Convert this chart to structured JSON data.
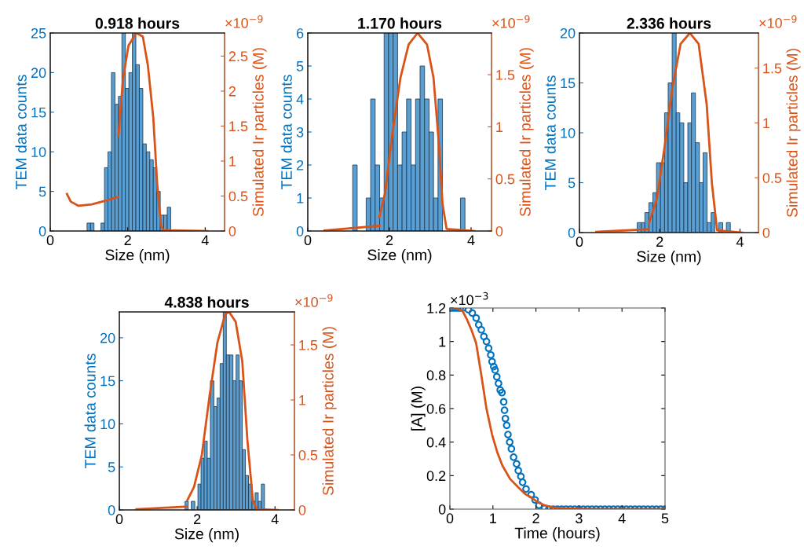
{
  "chart_data": [
    {
      "type": "histogram",
      "title": "0.918 hours",
      "xlabel": "Size (nm)",
      "ylabel": "TEM data counts",
      "y2label": "Simulated Ir particles (M)",
      "color": "#5a9fd4",
      "bins": [
        0.95,
        1.04,
        1.13,
        1.22,
        1.31,
        1.4,
        1.49,
        1.58,
        1.67,
        1.76,
        1.85,
        1.94,
        2.03,
        2.12,
        2.21,
        2.3,
        2.39,
        2.48,
        2.57,
        2.66,
        2.75,
        2.84,
        2.93,
        3.02,
        3.11
      ],
      "values": [
        1,
        1,
        0,
        0,
        1,
        8,
        10,
        20,
        16,
        17,
        25,
        18,
        20,
        25,
        21,
        18,
        11,
        10,
        9,
        8,
        5,
        2,
        2,
        3
      ],
      "xlim": [
        0,
        4.5
      ],
      "xticks": [
        0,
        2,
        4
      ],
      "ylim": [
        0,
        25
      ],
      "yticks": [
        0,
        5,
        10,
        15,
        20,
        25
      ],
      "y2lim": [
        0,
        2.83
      ],
      "y2ticks": [
        0,
        0.5,
        1,
        1.5,
        2,
        2.5
      ],
      "series": [
        {
          "type": "line",
          "axis": "y2",
          "color": "#d95319",
          "x": [
            0.43,
            0.53,
            0.73,
            1.07,
            1.41,
            1.76
          ],
          "values": [
            0.53,
            0.42,
            0.36,
            0.38,
            0.43,
            0.49
          ]
        },
        {
          "type": "line",
          "axis": "y2",
          "color": "#d95319",
          "x": [
            1.76,
            1.88,
            2.02,
            2.22,
            2.39,
            2.52,
            2.66,
            2.76,
            2.86,
            2.93,
            4.05
          ],
          "values": [
            1.36,
            2.18,
            2.65,
            2.83,
            2.78,
            2.37,
            1.62,
            0.68,
            0.08,
            0.01,
            0
          ]
        }
      ],
      "annotations": [
        "×10$^{−9}$"
      ]
    },
    {
      "type": "histogram",
      "title": "1.170 hours",
      "xlabel": "Size (nm)",
      "ylabel": "TEM data counts",
      "y2label": "Simulated Ir particles (M)",
      "color": "#5a9fd4",
      "bins": [
        1.1,
        1.21,
        1.32,
        1.43,
        1.54,
        1.65,
        1.76,
        1.87,
        1.98,
        2.09,
        2.2,
        2.31,
        2.42,
        2.53,
        2.64,
        2.75,
        2.86,
        2.97,
        3.08,
        3.19,
        3.3,
        3.41,
        3.52,
        3.63,
        3.74,
        3.85
      ],
      "values": [
        2,
        0,
        0,
        1,
        4,
        2,
        1,
        6,
        6,
        6,
        2,
        3,
        4,
        2,
        4,
        5,
        4,
        3,
        1,
        4,
        0,
        0,
        0,
        0,
        1
      ],
      "xlim": [
        0,
        4.5
      ],
      "xticks": [
        0,
        2,
        4
      ],
      "ylim": [
        0,
        6
      ],
      "yticks": [
        0,
        1,
        2,
        3,
        4,
        5,
        6
      ],
      "y2lim": [
        0,
        1.9
      ],
      "y2ticks": [
        0,
        0.5,
        1,
        1.5
      ],
      "series": [
        {
          "type": "line",
          "axis": "y2",
          "color": "#d95319",
          "x": [
            0.41,
            1.76
          ],
          "values": [
            0.005,
            0.05
          ]
        },
        {
          "type": "line",
          "axis": "y2",
          "color": "#d95319",
          "x": [
            1.75,
            1.89,
            2.08,
            2.27,
            2.47,
            2.69,
            2.92,
            3.08,
            3.21,
            3.3,
            3.4,
            4.08
          ],
          "values": [
            0.13,
            0.36,
            0.96,
            1.47,
            1.79,
            1.9,
            1.79,
            1.47,
            0.84,
            0.26,
            0.02,
            0
          ]
        }
      ],
      "annotations": [
        "×10$^{−9}$"
      ]
    },
    {
      "type": "histogram",
      "title": "2.336 hours",
      "xlabel": "Size (nm)",
      "ylabel": "TEM data counts",
      "y2label": "Simulated Ir particles (M)",
      "color": "#5a9fd4",
      "bins": [
        1.44,
        1.54,
        1.63,
        1.73,
        1.83,
        1.92,
        2.02,
        2.12,
        2.21,
        2.31,
        2.41,
        2.5,
        2.6,
        2.7,
        2.79,
        2.89,
        2.99,
        3.08,
        3.18,
        3.28,
        3.37,
        3.47,
        3.57,
        3.66,
        3.76
      ],
      "values": [
        1,
        1,
        2,
        3,
        4,
        7,
        7,
        12,
        15,
        20,
        12,
        11,
        5,
        11,
        14,
        9,
        5,
        8,
        1,
        2,
        0,
        1,
        0,
        1
      ],
      "xlim": [
        0,
        4.46
      ],
      "xticks": [
        0,
        2,
        4
      ],
      "ylim": [
        0,
        20
      ],
      "yticks": [
        0,
        5,
        10,
        15,
        20
      ],
      "y2lim": [
        0,
        1.82
      ],
      "y2ticks": [
        0,
        0.5,
        1,
        1.5
      ],
      "series": [
        {
          "type": "line",
          "axis": "y2",
          "color": "#d95319",
          "x": [
            0.42,
            1.73
          ],
          "values": [
            0.007,
            0.03
          ]
        },
        {
          "type": "line",
          "axis": "y2",
          "color": "#d95319",
          "x": [
            1.73,
            1.93,
            2.12,
            2.32,
            2.52,
            2.75,
            2.97,
            3.17,
            3.3,
            3.43,
            4.05
          ],
          "values": [
            0.08,
            0.31,
            0.78,
            1.33,
            1.72,
            1.82,
            1.72,
            1.17,
            0.45,
            0.02,
            0
          ]
        }
      ],
      "annotations": [
        "×10$^{−9}$"
      ]
    },
    {
      "type": "histogram",
      "title": "4.838 hours",
      "xlabel": "Size (nm)",
      "ylabel": "TEM data counts",
      "y2label": "Simulated Ir particles (M)",
      "color": "#5a9fd4",
      "bins": [
        1.69,
        1.77,
        1.85,
        1.94,
        2.02,
        2.1,
        2.18,
        2.26,
        2.34,
        2.43,
        2.51,
        2.59,
        2.67,
        2.75,
        2.83,
        2.92,
        3.0,
        3.08,
        3.16,
        3.24,
        3.32,
        3.41,
        3.49,
        3.57,
        3.65,
        3.73
      ],
      "values": [
        1,
        0,
        1,
        0,
        3,
        6,
        8,
        6,
        15,
        12,
        13,
        17,
        23,
        18,
        18,
        15,
        18,
        15,
        7,
        4,
        3,
        1,
        2,
        1,
        3
      ],
      "xlim": [
        0,
        4.5
      ],
      "xticks": [
        0,
        2,
        4
      ],
      "ylim": [
        0,
        23
      ],
      "yticks": [
        0,
        5,
        10,
        15,
        20
      ],
      "y2lim": [
        0,
        1.8
      ],
      "y2ticks": [
        0,
        0.5,
        1,
        1.5
      ],
      "series": [
        {
          "type": "line",
          "axis": "y2",
          "color": "#d95319",
          "x": [
            0.44,
            1.75
          ],
          "values": [
            0.007,
            0.03
          ]
        },
        {
          "type": "line",
          "axis": "y2",
          "color": "#d95319",
          "x": [
            1.75,
            1.92,
            2.12,
            2.32,
            2.52,
            2.72,
            2.82,
            2.99,
            3.16,
            3.29,
            3.43,
            3.53,
            4.07
          ],
          "values": [
            0.09,
            0.21,
            0.5,
            1.04,
            1.52,
            1.78,
            1.8,
            1.71,
            1.35,
            0.64,
            0.09,
            0.007,
            0
          ]
        }
      ],
      "annotations": [
        "×10$^{−9}$"
      ]
    },
    {
      "type": "scatter",
      "xlabel": "Time (hours)",
      "ylabel": "[A] (M)",
      "xlim": [
        0,
        5
      ],
      "xticks": [
        0,
        1,
        2,
        3,
        4,
        5
      ],
      "ylim": [
        0,
        1.2
      ],
      "yticks": [
        0,
        0.2,
        0.4,
        0.6,
        0.8,
        1,
        1.2
      ],
      "series": [
        {
          "type": "scatter",
          "marker": "circle",
          "color": "#0072bd",
          "x": [
            0,
            0.06,
            0.12,
            0.18,
            0.24,
            0.3,
            0.43,
            0.52,
            0.61,
            0.67,
            0.73,
            0.79,
            0.85,
            0.9,
            0.95,
            0.98,
            1.02,
            1.05,
            1.09,
            1.13,
            1.17,
            1.21,
            1.25,
            1.27,
            1.29,
            1.32,
            1.35,
            1.39,
            1.43,
            1.48,
            1.55,
            1.59,
            1.65,
            1.69,
            1.77,
            1.89,
            1.98,
            2.07,
            2.2,
            2.3,
            2.4,
            2.5,
            2.6,
            2.7,
            2.8,
            2.9,
            3,
            3.1,
            3.2,
            3.3,
            3.4,
            3.5,
            3.6,
            3.7,
            3.8,
            3.9,
            4,
            4.1,
            4.2,
            4.3,
            4.4,
            4.5,
            4.6,
            4.7,
            4.8,
            4.9,
            5
          ],
          "values": [
            1.2,
            1.2,
            1.2,
            1.2,
            1.2,
            1.2,
            1.19,
            1.17,
            1.14,
            1.1,
            1.07,
            1.03,
            1,
            0.96,
            0.92,
            0.88,
            0.85,
            0.83,
            0.79,
            0.75,
            0.71,
            0.695,
            0.64,
            0.59,
            0.54,
            0.5,
            0.445,
            0.4,
            0.36,
            0.31,
            0.27,
            0.23,
            0.195,
            0.16,
            0.12,
            0.086,
            0.055,
            0.023,
            0.005,
            0,
            0,
            0,
            0,
            0,
            0,
            0,
            0,
            0,
            0,
            0,
            0,
            0,
            0,
            0,
            0,
            0,
            0,
            0,
            0,
            0,
            0,
            0,
            0,
            0,
            0,
            0,
            0
          ]
        },
        {
          "type": "line",
          "color": "#d95319",
          "x": [
            0,
            0.15,
            0.3,
            0.4,
            0.5,
            0.61,
            0.73,
            0.85,
            0.98,
            1.1,
            1.22,
            1.4,
            1.59,
            1.75,
            1.89,
            2.05,
            2.2,
            2.4,
            2.7,
            3,
            4,
            5
          ],
          "values": [
            1.2,
            1.2,
            1.18,
            1.13,
            1.07,
            0.99,
            0.8,
            0.6,
            0.445,
            0.34,
            0.26,
            0.18,
            0.13,
            0.09,
            0.07,
            0.04,
            0.023,
            0.01,
            0.004,
            0.002,
            0,
            0
          ]
        }
      ],
      "annotations": [
        "×10$^{−3}$"
      ]
    }
  ]
}
